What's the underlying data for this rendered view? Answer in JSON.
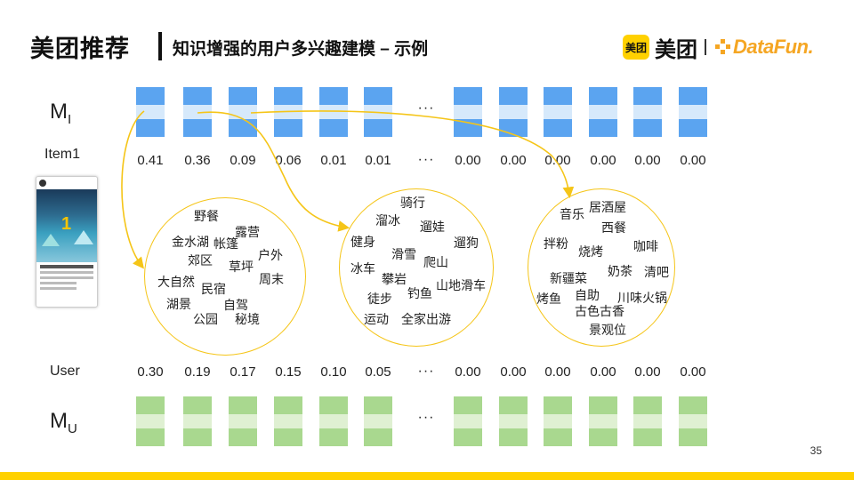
{
  "header": {
    "title": "美团推荐",
    "subtitle": "知识增强的用户多兴趣建模 – 示例"
  },
  "brand": {
    "badge": "美团",
    "name": "美团",
    "partner": "DataFun."
  },
  "rows": {
    "mi_label": "M",
    "mi_sub": "I",
    "item_label": "Item1",
    "user_label": "User",
    "mu_label": "M",
    "mu_sub": "U",
    "ellipsis": "···"
  },
  "item_values": [
    "0.41",
    "0.36",
    "0.09",
    "0.06",
    "0.01",
    "0.01",
    "0.00",
    "0.00",
    "0.00",
    "0.00",
    "0.00",
    "0.00"
  ],
  "user_values": [
    "0.30",
    "0.19",
    "0.17",
    "0.15",
    "0.10",
    "0.05",
    "0.00",
    "0.00",
    "0.00",
    "0.00",
    "0.00",
    "0.00"
  ],
  "clusters": [
    [
      "野餐",
      "露营",
      "金水湖",
      "帐篷",
      "户外",
      "郊区",
      "草坪",
      "大自然",
      "周末",
      "民宿",
      "湖景",
      "自驾",
      "公园",
      "秘境"
    ],
    [
      "骑行",
      "溜冰",
      "遛娃",
      "健身",
      "遛狗",
      "滑雪",
      "爬山",
      "冰车",
      "攀岩",
      "山地滑车",
      "徒步",
      "钓鱼",
      "运动",
      "全家出游"
    ],
    [
      "居酒屋",
      "音乐",
      "西餐",
      "拌粉",
      "烧烤",
      "咖啡",
      "奶茶",
      "清吧",
      "新疆菜",
      "烤鱼",
      "自助",
      "川味火锅",
      "古色古香",
      "景观位"
    ]
  ],
  "phone": {
    "number": "1"
  },
  "colors": {
    "mi_block": "#5BA4F0",
    "mi_block_mid": "#D6E9FB",
    "mu_block": "#A9D88F",
    "mu_block_mid": "#DFF0D2",
    "accent": "#F5C518",
    "bottom_bar": "#FFD100"
  },
  "page_number": "35"
}
